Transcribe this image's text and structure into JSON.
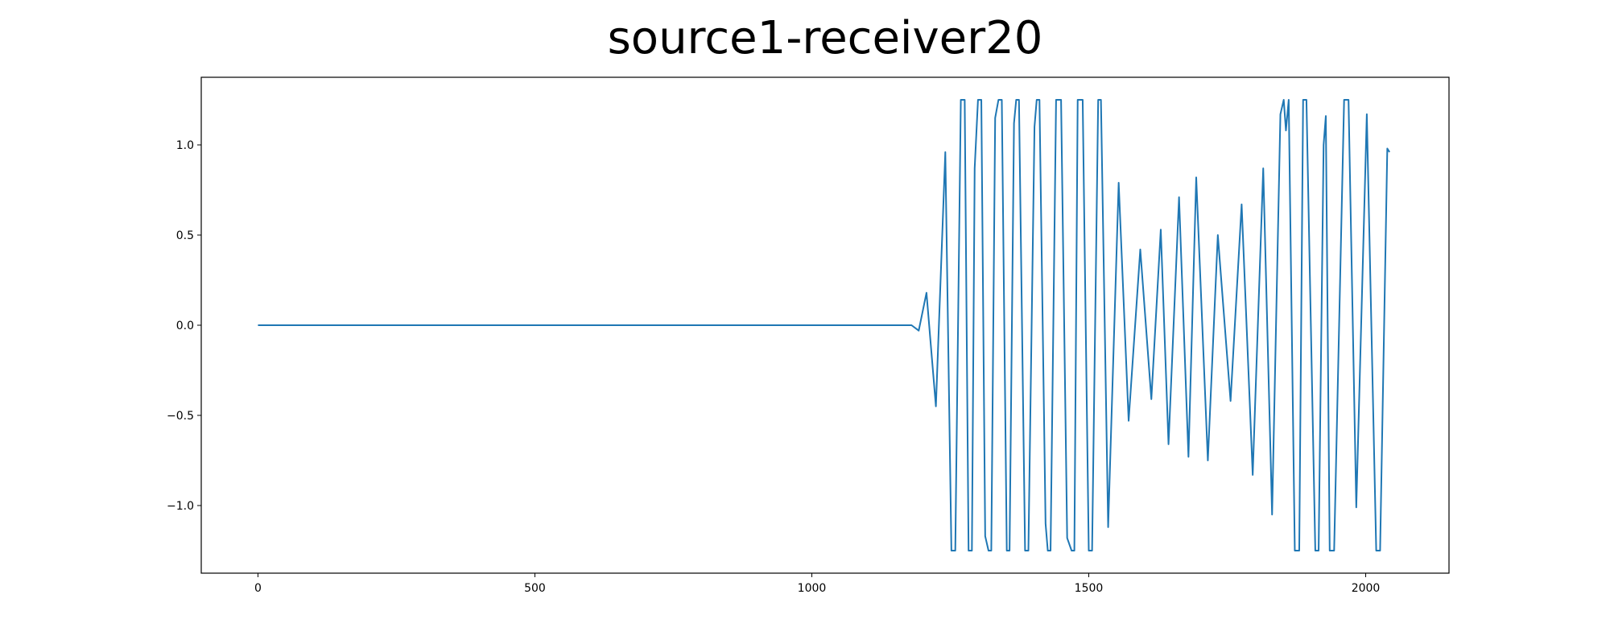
{
  "chart_data": {
    "type": "line",
    "title": "source1-receiver20",
    "x": [
      0,
      1180,
      1193,
      1207,
      1224,
      1241,
      1252,
      1259,
      1269,
      1276,
      1283,
      1289,
      1294,
      1300,
      1306,
      1313,
      1319,
      1324,
      1331,
      1337,
      1343,
      1352,
      1357,
      1365,
      1369,
      1374,
      1385,
      1391,
      1402,
      1406,
      1411,
      1422,
      1426,
      1431,
      1441,
      1450,
      1461,
      1469,
      1474,
      1480,
      1489,
      1500,
      1506,
      1517,
      1522,
      1535,
      1554,
      1572,
      1593,
      1613,
      1630,
      1644,
      1663,
      1680,
      1694,
      1715,
      1733,
      1756,
      1776,
      1796,
      1815,
      1831,
      1846,
      1852,
      1856,
      1861,
      1872,
      1880,
      1887,
      1893,
      1909,
      1915,
      1924,
      1928,
      1935,
      1943,
      1961,
      1969,
      1983,
      2002,
      2019,
      2026,
      2039,
      2043
    ],
    "series": [
      {
        "color": "#1f77b4",
        "values": [
          0,
          0,
          -0.03,
          0.18,
          -0.45,
          0.96,
          -1.25,
          -1.25,
          1.25,
          1.25,
          -1.25,
          -1.25,
          0.87,
          1.25,
          1.25,
          -1.17,
          -1.25,
          -1.25,
          1.15,
          1.25,
          1.25,
          -1.25,
          -1.25,
          1.12,
          1.25,
          1.25,
          -1.25,
          -1.25,
          1.1,
          1.25,
          1.25,
          -1.1,
          -1.25,
          -1.25,
          1.25,
          1.25,
          -1.18,
          -1.25,
          -1.25,
          1.25,
          1.25,
          -1.25,
          -1.25,
          1.25,
          1.25,
          -1.12,
          0.79,
          -0.53,
          0.42,
          -0.41,
          0.53,
          -0.66,
          0.71,
          -0.73,
          0.82,
          -0.75,
          0.5,
          -0.42,
          0.67,
          -0.83,
          0.87,
          -1.05,
          1.17,
          1.25,
          1.08,
          1.25,
          -1.25,
          -1.25,
          1.25,
          1.25,
          -1.25,
          -1.25,
          1.0,
          1.16,
          -1.25,
          -1.25,
          1.25,
          1.25,
          -1.01,
          1.17,
          -1.25,
          -1.25,
          0.98,
          0.96
        ]
      }
    ],
    "xlim": [
      -102.4,
      2150.4
    ],
    "ylim": [
      -1.375,
      1.375
    ],
    "xticks": [
      0,
      500,
      1000,
      1500,
      2000
    ],
    "yticks": [
      {
        "value": -1,
        "label": "−1.0"
      },
      {
        "value": -0.5,
        "label": "−0.5"
      },
      {
        "value": 0,
        "label": "0.0"
      },
      0.5,
      {
        "value": 1,
        "label": "1.0"
      }
    ],
    "grid": false
  }
}
